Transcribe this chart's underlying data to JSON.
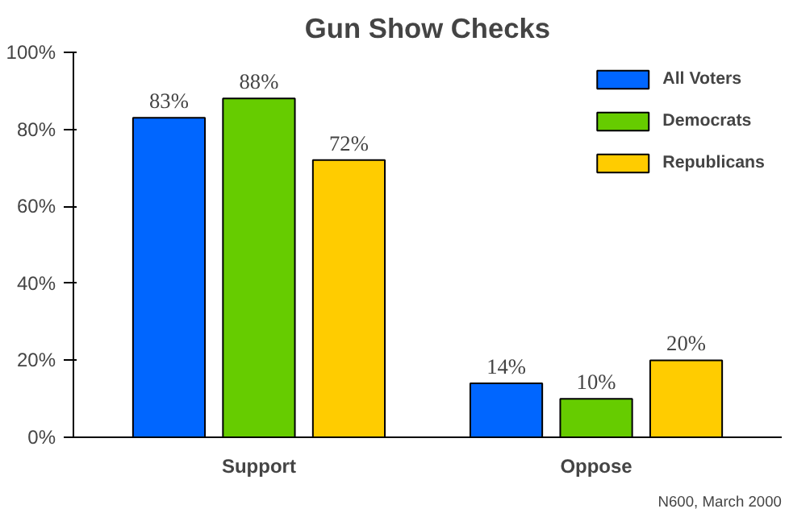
{
  "chart_data": {
    "type": "bar",
    "title": "Gun Show Checks",
    "categories": [
      "Support",
      "Oppose"
    ],
    "series": [
      {
        "name": "All Voters",
        "color": "#0066ff",
        "values": [
          83,
          14
        ],
        "value_labels": [
          "83%",
          "14%"
        ]
      },
      {
        "name": "Democrats",
        "color": "#66cc00",
        "values": [
          88,
          10
        ],
        "value_labels": [
          "88%",
          "10%"
        ]
      },
      {
        "name": "Republicans",
        "color": "#ffcc00",
        "values": [
          72,
          20
        ],
        "value_labels": [
          "72%",
          "20%"
        ]
      }
    ],
    "ylim": [
      0,
      100
    ],
    "yticks": [
      {
        "value": 0,
        "label": "0%"
      },
      {
        "value": 20,
        "label": "20%"
      },
      {
        "value": 40,
        "label": "40%"
      },
      {
        "value": 60,
        "label": "60%"
      },
      {
        "value": 80,
        "label": "80%"
      },
      {
        "value": 100,
        "label": "100%"
      }
    ],
    "grid": false,
    "legend": "top right",
    "annotations": [
      "N600, March 2000"
    ]
  }
}
